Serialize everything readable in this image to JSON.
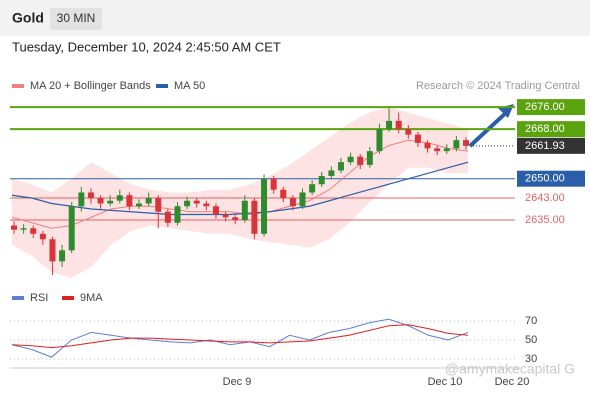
{
  "chart_data": {
    "type": "candlestick",
    "title": "Gold",
    "timeframe": "30 MIN",
    "subtitle": "Tuesday, December 10, 2024 2:45:50 AM CET",
    "credit": "Research © 2024 Trading Central",
    "watermark": "@amymakecapital G",
    "ylim": [
      2612.5,
      2679.3
    ],
    "up_color": "#2e8b2e",
    "down_color": "#d9343a",
    "band_color": "#fde3e3",
    "candles": [
      [
        2633,
        2634.5,
        2630,
        2631.5
      ],
      [
        2631.5,
        2633.5,
        2630,
        2632
      ],
      [
        2632,
        2633,
        2628.5,
        2630
      ],
      [
        2630,
        2631,
        2626,
        2628
      ],
      [
        2628,
        2629,
        2615,
        2620
      ],
      [
        2620,
        2626,
        2618,
        2624
      ],
      [
        2624,
        2641.5,
        2623,
        2640
      ],
      [
        2640,
        2647,
        2638,
        2645
      ],
      [
        2645,
        2646.5,
        2641,
        2643
      ],
      [
        2643,
        2644,
        2639,
        2641
      ],
      [
        2641,
        2644,
        2640,
        2642
      ],
      [
        2642,
        2646,
        2641,
        2644
      ],
      [
        2644,
        2645,
        2638.5,
        2640
      ],
      [
        2640,
        2642.5,
        2639,
        2641
      ],
      [
        2641,
        2645,
        2640,
        2643
      ],
      [
        2643,
        2644,
        2632,
        2638
      ],
      [
        2638,
        2639,
        2632.5,
        2634
      ],
      [
        2634,
        2641.5,
        2633,
        2640
      ],
      [
        2640,
        2643.5,
        2639,
        2642
      ],
      [
        2642,
        2643,
        2639.5,
        2641
      ],
      [
        2641,
        2642,
        2638.5,
        2640
      ],
      [
        2640,
        2641,
        2635.5,
        2637
      ],
      [
        2637,
        2638,
        2634.5,
        2636
      ],
      [
        2636,
        2637,
        2633.5,
        2635
      ],
      [
        2635,
        2644,
        2634,
        2642
      ],
      [
        2642,
        2643,
        2628,
        2630
      ],
      [
        2630,
        2651.5,
        2629,
        2650
      ],
      [
        2650,
        2651,
        2644.5,
        2646
      ],
      [
        2646,
        2647,
        2641.5,
        2643
      ],
      [
        2643,
        2644,
        2638.5,
        2640
      ],
      [
        2640,
        2646.5,
        2639,
        2645
      ],
      [
        2645,
        2649.5,
        2644,
        2648
      ],
      [
        2648,
        2652.5,
        2647,
        2651
      ],
      [
        2651,
        2654.5,
        2650,
        2653
      ],
      [
        2653,
        2657.5,
        2652,
        2656
      ],
      [
        2656,
        2659.5,
        2655,
        2658
      ],
      [
        2658,
        2659,
        2653.5,
        2655
      ],
      [
        2655,
        2661.5,
        2654,
        2660
      ],
      [
        2660,
        2670,
        2659,
        2668
      ],
      [
        2668,
        2675.5,
        2667,
        2671
      ],
      [
        2671,
        2674,
        2666.5,
        2668
      ],
      [
        2668,
        2669.5,
        2664.5,
        2666
      ],
      [
        2666,
        2667,
        2661.5,
        2663
      ],
      [
        2663,
        2664,
        2659.5,
        2661
      ],
      [
        2661,
        2662,
        2658.5,
        2660
      ],
      [
        2660,
        2662.5,
        2659,
        2661
      ],
      [
        2661,
        2665.5,
        2660,
        2664
      ],
      [
        2664,
        2665,
        2660.5,
        2661.93
      ]
    ],
    "series": [
      {
        "name": "MA 20 + Bollinger Bands",
        "color": "#f08080",
        "values": [
          2636,
          2634,
          2632,
          2633,
          2636,
          2639,
          2640,
          2640,
          2639,
          2638,
          2638,
          2638,
          2637,
          2638,
          2640,
          2642,
          2646,
          2652,
          2658,
          2662,
          2664,
          2663,
          2661,
          2660
        ],
        "upper": [
          2650,
          2648,
          2645,
          2650,
          2656,
          2652,
          2648,
          2646,
          2645,
          2645,
          2646,
          2646,
          2648,
          2651,
          2655,
          2660,
          2665,
          2670,
          2674,
          2676,
          2674,
          2672,
          2670,
          2668
        ],
        "lower": [
          2626,
          2622,
          2616,
          2614,
          2618,
          2626,
          2631,
          2633,
          2632,
          2631,
          2630,
          2630,
          2628,
          2627,
          2626,
          2625,
          2628,
          2634,
          2641,
          2648,
          2654,
          2654,
          2652,
          2652
        ]
      },
      {
        "name": "MA 50",
        "color": "#2a5ea8",
        "values": [
          2644,
          2643,
          2641,
          2640,
          2639,
          2638.5,
          2638,
          2637.5,
          2637,
          2637,
          2637,
          2637,
          2637.5,
          2638,
          2639,
          2640,
          2642,
          2644,
          2646,
          2648,
          2650,
          2652,
          2654,
          2656
        ]
      }
    ],
    "levels": [
      {
        "value": 2676,
        "label": "2676.00",
        "color": "#5aa30f",
        "filled": true
      },
      {
        "value": 2668,
        "label": "2668.00",
        "color": "#5aa30f",
        "filled": true
      },
      {
        "value": 2650,
        "label": "2650.00",
        "color": "#2a5ea8",
        "filled": true
      },
      {
        "value": 2643,
        "label": "2643.00",
        "color": "#e0626a",
        "filled": false
      },
      {
        "value": 2635,
        "label": "2635.00",
        "color": "#e0626a",
        "filled": false
      }
    ],
    "last_price": {
      "value": 2661.93,
      "label": "2661.93",
      "color": "#333333"
    },
    "x_labels": [
      "Dec 9",
      "Dec 10",
      "Dec 20"
    ],
    "rsi": {
      "ylim": [
        17,
        82
      ],
      "yticks": [
        70,
        50,
        30
      ],
      "series": [
        {
          "name": "RSI",
          "color": "#5b7fd6",
          "values": [
            45,
            40,
            32,
            50,
            58,
            55,
            52,
            50,
            48,
            47,
            50,
            45,
            48,
            43,
            55,
            50,
            58,
            62,
            68,
            72,
            65,
            55,
            50,
            58
          ]
        },
        {
          "name": "9MA",
          "color": "#e02020",
          "values": [
            45,
            44,
            42,
            44,
            47,
            50,
            52,
            52,
            51,
            50,
            49,
            48,
            48,
            47,
            48,
            49,
            52,
            55,
            60,
            65,
            66,
            62,
            57,
            55
          ]
        }
      ]
    }
  }
}
